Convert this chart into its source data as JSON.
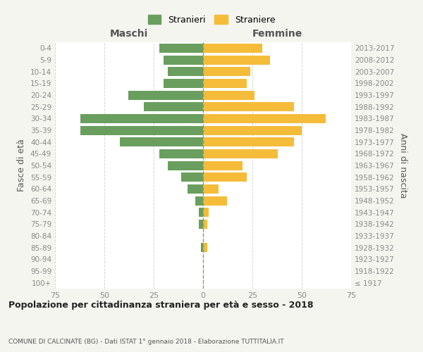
{
  "age_groups": [
    "100+",
    "95-99",
    "90-94",
    "85-89",
    "80-84",
    "75-79",
    "70-74",
    "65-69",
    "60-64",
    "55-59",
    "50-54",
    "45-49",
    "40-44",
    "35-39",
    "30-34",
    "25-29",
    "20-24",
    "15-19",
    "10-14",
    "5-9",
    "0-4"
  ],
  "birth_years": [
    "≤ 1917",
    "1918-1922",
    "1923-1927",
    "1928-1932",
    "1933-1937",
    "1938-1942",
    "1943-1947",
    "1948-1952",
    "1953-1957",
    "1958-1962",
    "1963-1967",
    "1968-1972",
    "1973-1977",
    "1978-1982",
    "1983-1987",
    "1988-1992",
    "1993-1997",
    "1998-2002",
    "2003-2007",
    "2008-2012",
    "2013-2017"
  ],
  "maschi": [
    0,
    0,
    0,
    1,
    0,
    2,
    2,
    4,
    8,
    11,
    18,
    22,
    42,
    62,
    62,
    30,
    38,
    20,
    18,
    20,
    22
  ],
  "femmine": [
    0,
    0,
    0,
    2,
    0,
    2,
    3,
    12,
    8,
    22,
    20,
    38,
    46,
    50,
    62,
    46,
    26,
    22,
    24,
    34,
    30
  ],
  "maschi_color": "#6a9e5e",
  "femmine_color": "#f5bc3a",
  "title": "Popolazione per cittadinanza straniera per età e sesso - 2018",
  "subtitle": "COMUNE DI CALCINATE (BG) - Dati ISTAT 1° gennaio 2018 - Elaborazione TUTTITALIA.IT",
  "maschi_label": "Stranieri",
  "femmine_label": "Straniere",
  "xlabel_left": "Maschi",
  "xlabel_right": "Femmine",
  "ylabel_left": "Fasce di età",
  "ylabel_right": "Anni di nascita",
  "xlim": 75,
  "bg_color": "#f5f5f0",
  "plot_bg_color": "#ffffff",
  "grid_color": "#d5d5d5",
  "tick_color": "#888888",
  "label_color": "#555555",
  "title_color": "#222222"
}
